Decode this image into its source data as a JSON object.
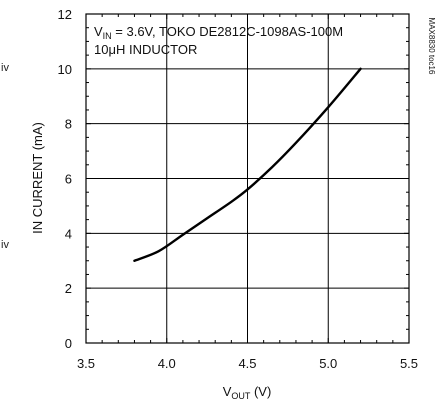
{
  "chart_data": {
    "type": "line",
    "annotation_line1_main": "V",
    "annotation_line1_sub": "IN",
    "annotation_line1_rest": " = 3.6V, TOKO DE2812C-1098AS-100M",
    "annotation_line2_pre": "10",
    "annotation_line2_mu": "μ",
    "annotation_line2_rest": "H INDUCTOR",
    "ylabel": "IN CURRENT (mA)",
    "xlabel_main": "V",
    "xlabel_sub": "OUT",
    "xlabel_rest": " (V)",
    "side_id": "MAX8830 toc16",
    "x_ticks": [
      "3.5",
      "4.0",
      "4.5",
      "5.0",
      "5.5"
    ],
    "y_ticks": [
      "0",
      "2",
      "4",
      "6",
      "8",
      "10",
      "12"
    ],
    "xlim": [
      3.5,
      5.5
    ],
    "ylim": [
      0,
      12
    ],
    "grid": true,
    "series": [
      {
        "x": [
          3.8,
          3.95,
          4.1,
          4.25,
          4.4,
          4.5,
          4.65,
          4.8,
          5.0,
          5.2
        ],
        "y": [
          3.0,
          3.35,
          3.95,
          4.55,
          5.15,
          5.6,
          6.4,
          7.3,
          8.6,
          10.0
        ],
        "color": "#000000"
      }
    ]
  },
  "side_texts": [
    "iv",
    "iv"
  ]
}
